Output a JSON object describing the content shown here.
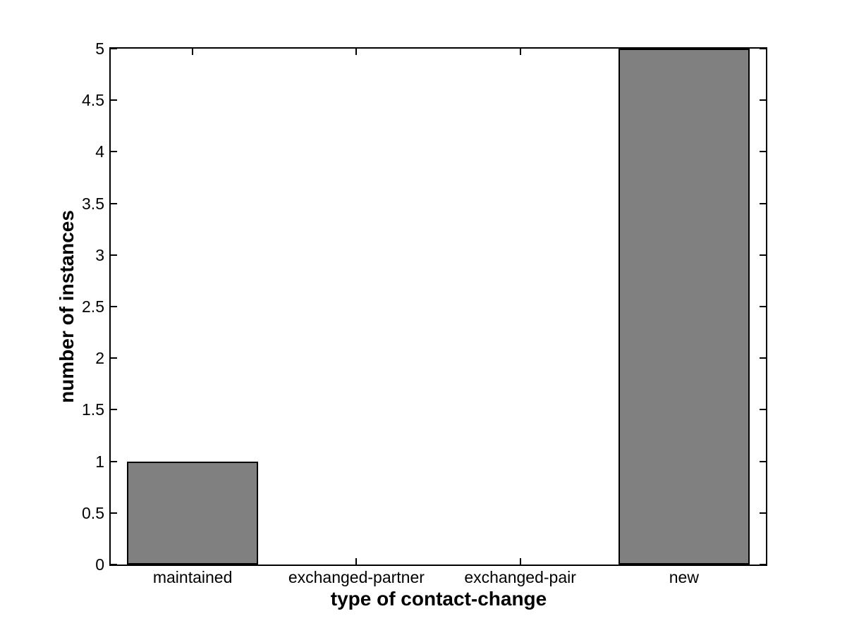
{
  "figure": {
    "background_color": "#ffffff"
  },
  "chart_data": {
    "type": "bar",
    "title": "",
    "categories": [
      "maintained",
      "exchanged-partner",
      "exchanged-pair",
      "new"
    ],
    "values": [
      1,
      0,
      0,
      5
    ],
    "xlabel": "type of contact-change",
    "ylabel": "number of instances",
    "ylim": [
      0,
      5
    ],
    "ytick_step": 0.5,
    "ytick_labels": [
      "0",
      "0.5",
      "1",
      "1.5",
      "2",
      "2.5",
      "3",
      "3.5",
      "4",
      "4.5",
      "5"
    ],
    "grid": false,
    "legend": null,
    "bar_width_fraction": 0.8,
    "bar_color": "#808080",
    "bar_edge_color": "#000000",
    "axis_color": "#000000",
    "tick_direction": "in",
    "box": true
  }
}
